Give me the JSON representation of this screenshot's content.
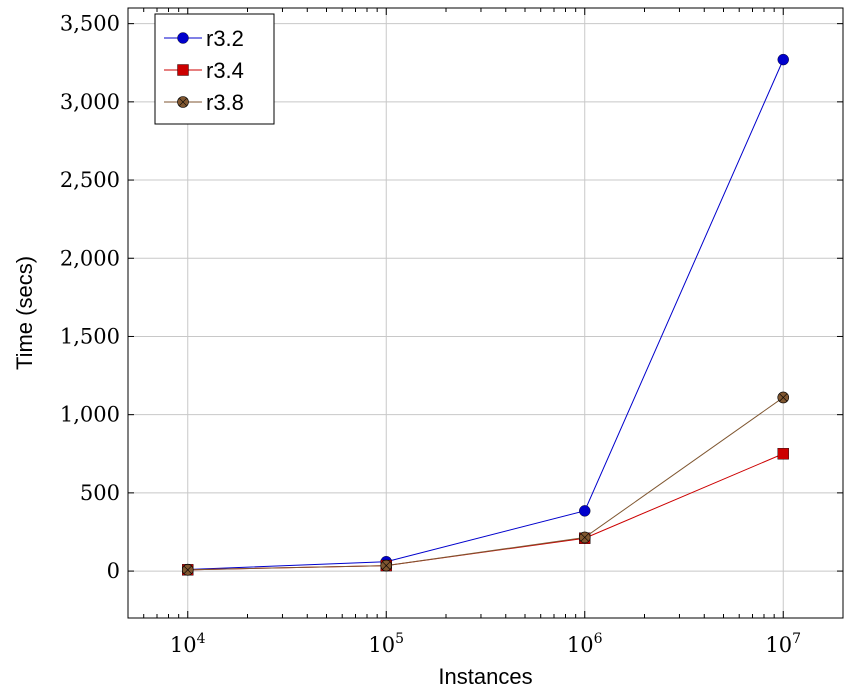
{
  "chart_data": {
    "type": "line",
    "xlabel": "Instances",
    "ylabel": "Time (secs)",
    "x_scale": "log",
    "x": [
      10000,
      100000,
      1000000,
      10000000
    ],
    "x_tick_labels": [
      {
        "base": "10",
        "exp": "4"
      },
      {
        "base": "10",
        "exp": "5"
      },
      {
        "base": "10",
        "exp": "6"
      },
      {
        "base": "10",
        "exp": "7"
      }
    ],
    "xlim": [
      5000,
      20000000
    ],
    "ylim": [
      -300,
      3600
    ],
    "y_ticks": [
      0,
      500,
      1000,
      1500,
      2000,
      2500,
      3000,
      3500
    ],
    "y_tick_labels": [
      "0",
      "500",
      "1,000",
      "1,500",
      "2,000",
      "2,500",
      "3,000",
      "3,500"
    ],
    "grid": true,
    "legend_position": "top-left",
    "series": [
      {
        "name": "r3.2",
        "color": "#0000cc",
        "marker": "circle",
        "values": [
          10,
          60,
          385,
          3270
        ]
      },
      {
        "name": "r3.4",
        "color": "#cc0000",
        "marker": "square",
        "values": [
          8,
          35,
          210,
          750
        ]
      },
      {
        "name": "r3.8",
        "color": "#7f5630",
        "marker": "crossed-circle",
        "values": [
          8,
          35,
          215,
          1110
        ]
      }
    ]
  }
}
